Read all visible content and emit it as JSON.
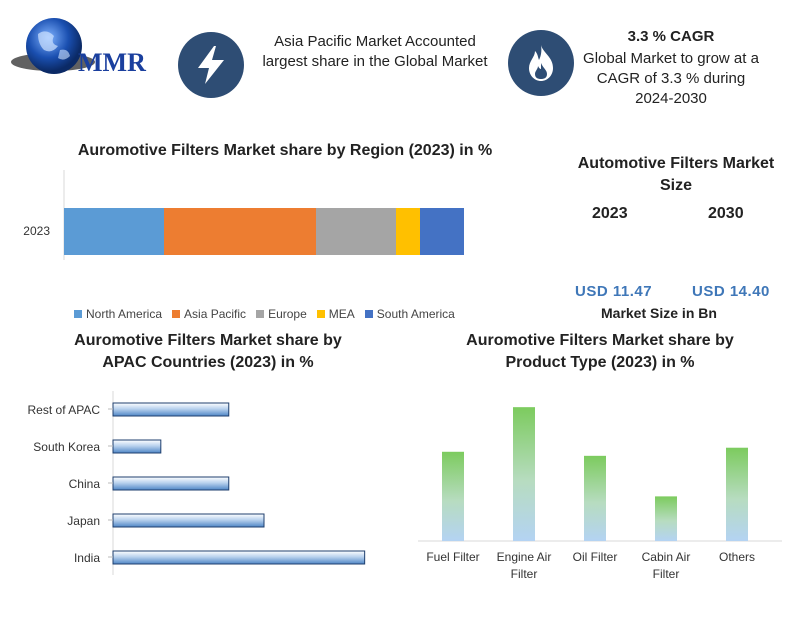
{
  "header": {
    "logo_text": "MMR",
    "left_info": "Asia Pacific Market Accounted largest share in the Global Market",
    "cagr_title": "3.3 % CAGR",
    "cagr_text": "Global Market to grow at a CAGR of 3.3 % during 2024-2030",
    "left_icon": "lightning-icon",
    "right_icon": "flame-icon"
  },
  "market_size": {
    "title": "Automotive Filters Market Size",
    "year1": "2023",
    "year2": "2030",
    "value1": "USD 11.47",
    "value2": "USD 14.40",
    "unit_label": "Market Size in Bn"
  },
  "colors": {
    "north_america": "#5b9bd5",
    "asia_pacific": "#ed7d31",
    "europe": "#a5a5a5",
    "mea": "#ffc000",
    "south_america": "#4472c4",
    "icon_bg": "#2e4d74"
  },
  "chart_data": [
    {
      "type": "bar",
      "orientation": "horizontal-stacked",
      "title": "Auromotive Filters Market share by Region (2023) in %",
      "categories": [
        "2023"
      ],
      "series": [
        {
          "name": "North America",
          "values": [
            25
          ]
        },
        {
          "name": "Asia Pacific",
          "values": [
            38
          ]
        },
        {
          "name": "Europe",
          "values": [
            20
          ]
        },
        {
          "name": "MEA",
          "values": [
            6
          ]
        },
        {
          "name": "South America",
          "values": [
            11
          ]
        }
      ],
      "xlim": [
        0,
        100
      ],
      "legend": "bottom"
    },
    {
      "type": "bar",
      "orientation": "horizontal",
      "title": "Auromotive Filters Market share by APAC Countries (2023) in %",
      "categories": [
        "Rest of APAC",
        "South Korea",
        "China",
        "Japan",
        "India"
      ],
      "values": [
        23,
        9.5,
        23,
        30,
        50
      ],
      "xlim": [
        0,
        60
      ]
    },
    {
      "type": "bar",
      "orientation": "vertical",
      "title": "Auromotive Filters Market share by Product Type (2023) in %",
      "categories": [
        "Fuel Filter",
        "Engine Air Filter",
        "Oil Filter",
        "Cabin Air Filter",
        "Others"
      ],
      "values": [
        22,
        33,
        21,
        11,
        23
      ],
      "ylim": [
        0,
        36
      ]
    }
  ]
}
